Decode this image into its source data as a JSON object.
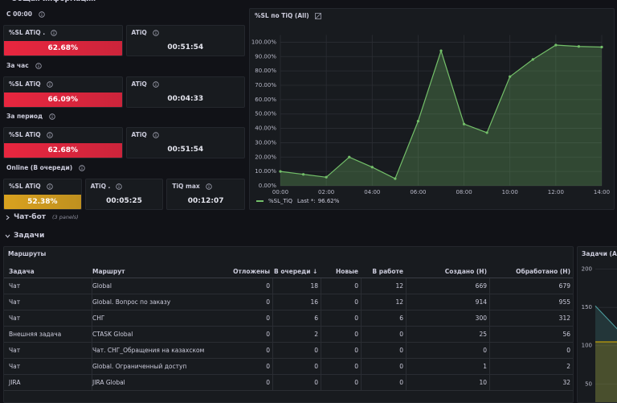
{
  "header": {
    "title": "Общая информация"
  },
  "sections": [
    {
      "title": "С 00:00",
      "panels": [
        {
          "title": "%SL ATiQ .",
          "value": "62.68%",
          "color": "#e8263f"
        },
        {
          "title": "ATiQ",
          "value": "00:51:54"
        }
      ]
    },
    {
      "title": "За час",
      "panels": [
        {
          "title": "%SL ATiQ",
          "value": "66.09%",
          "color": "#e8263f"
        },
        {
          "title": "ATiQ",
          "value": "00:04:33"
        }
      ]
    },
    {
      "title": "За период",
      "panels": [
        {
          "title": "%SL ATiQ",
          "value": "62.68%",
          "color": "#e8263f"
        },
        {
          "title": "ATiQ",
          "value": "00:51:54"
        }
      ]
    },
    {
      "title": "Online (В очереди)",
      "panels": [
        {
          "title": "%SL ATiQ",
          "value": "52.38%",
          "color": "#d9a21f"
        },
        {
          "title": "ATiQ .",
          "value": "00:05:25"
        },
        {
          "title": "TiQ max",
          "value": "00:12:07"
        }
      ]
    }
  ],
  "chart_data": {
    "type": "line",
    "title": "%SL по TiQ (All)",
    "x": [
      0,
      1,
      2,
      3,
      4,
      5,
      6,
      7,
      8,
      9,
      10,
      11,
      12,
      13,
      14
    ],
    "xlim": [
      0,
      14
    ],
    "xticks": [
      {
        "value": 0,
        "label": "00:00"
      },
      {
        "value": 2,
        "label": "02:00"
      },
      {
        "value": 4,
        "label": "04:00"
      },
      {
        "value": 6,
        "label": "06:00"
      },
      {
        "value": 8,
        "label": "08:00"
      },
      {
        "value": 10,
        "label": "10:00"
      },
      {
        "value": 12,
        "label": "12:00"
      },
      {
        "value": 14,
        "label": "14:00"
      }
    ],
    "ylim": [
      0,
      105
    ],
    "yticks": [
      {
        "value": 0,
        "label": "0.00%"
      },
      {
        "value": 10,
        "label": "10.00%"
      },
      {
        "value": 20,
        "label": "20.00%"
      },
      {
        "value": 30,
        "label": "30.00%"
      },
      {
        "value": 40,
        "label": "40.00%"
      },
      {
        "value": 50,
        "label": "50.00%"
      },
      {
        "value": 60,
        "label": "60.00%"
      },
      {
        "value": 70,
        "label": "70.00%"
      },
      {
        "value": 80,
        "label": "80.00%"
      },
      {
        "value": 90,
        "label": "90.00%"
      },
      {
        "value": 100,
        "label": "100.00%"
      }
    ],
    "grid": true,
    "series": [
      {
        "name": "%SL_TiQ",
        "color": "#73bf69",
        "values": [
          10,
          8,
          6,
          20,
          13,
          5,
          45,
          94,
          43,
          37,
          76,
          88,
          98,
          97,
          96.62
        ],
        "legend_calc": "Last *:",
        "last_label": "96.62%"
      }
    ]
  },
  "rows": [
    {
      "title": "Чат-бот",
      "note": "(3 panels)",
      "collapsed": true
    },
    {
      "title": "Задачи",
      "collapsed": false
    }
  ],
  "table": {
    "title": "Маршруты",
    "columns": [
      "Задача",
      "Маршрут",
      "Отложены",
      "В очереди ↓",
      "Новые",
      "В работе",
      "Создано (Н)",
      "Обработано (Н)"
    ],
    "rows": [
      [
        "Чат",
        "Global",
        "0",
        "18",
        "0",
        "12",
        "669",
        "679"
      ],
      [
        "Чат",
        "Global. Вопрос по заказу",
        "0",
        "16",
        "0",
        "12",
        "914",
        "955"
      ],
      [
        "Чат",
        "СНГ",
        "0",
        "6",
        "0",
        "6",
        "300",
        "312"
      ],
      [
        "Внешняя задача",
        "CTASK Global",
        "0",
        "2",
        "0",
        "0",
        "25",
        "56"
      ],
      [
        "Чат",
        "Чат. СНГ_Обращения на казахском",
        "0",
        "0",
        "0",
        "0",
        "0",
        "0"
      ],
      [
        "Чат",
        "Global. Ограниченный доступ",
        "0",
        "0",
        "0",
        "0",
        "1",
        "2"
      ],
      [
        "JIRA",
        "JIRA Global",
        "0",
        "0",
        "0",
        "0",
        "10",
        "32"
      ]
    ]
  },
  "side_chart": {
    "type": "line",
    "title": "Задачи (All)",
    "ylim": [
      24,
      208
    ],
    "yticks": [
      200,
      150,
      100,
      50
    ],
    "series": [
      {
        "color": "#4fa3a5",
        "values": [
          152,
          110
        ]
      },
      {
        "color": "#e0b400",
        "values": [
          105,
          105
        ]
      }
    ]
  }
}
